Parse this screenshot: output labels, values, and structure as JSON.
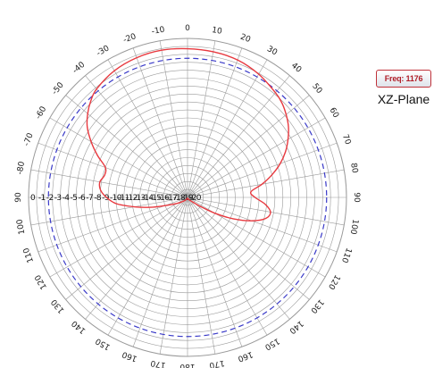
{
  "freq_badge": "Freq: 1176",
  "plane_label": "XZ-Plane",
  "colors": {
    "pattern": "#e8393f",
    "reference": "#3a3ac8",
    "grid": "#9a9a9a",
    "badge_border": "#c0323a"
  },
  "chart_data": {
    "type": "polar",
    "angle_zero": "top",
    "angle_direction": "clockwise",
    "angle_tick_labels": [
      "0",
      "10",
      "20",
      "30",
      "40",
      "50",
      "60",
      "70",
      "80",
      "90",
      "100",
      "110",
      "120",
      "130",
      "140",
      "150",
      "160",
      "170",
      "180",
      "170",
      "160",
      "150",
      "140",
      "130",
      "120",
      "110",
      "100",
      "90",
      "-80",
      "-70",
      "-60",
      "-50",
      "-40",
      "-30",
      "-20",
      "-10"
    ],
    "radial_tick_labels": [
      "0",
      "-1",
      "-2",
      "-3",
      "-4",
      "-5",
      "-6",
      "-7",
      "-8",
      "-9",
      "-10",
      "-11",
      "-12",
      "-13",
      "-14",
      "-15",
      "-16",
      "-17",
      "-18",
      "-19",
      "-20"
    ],
    "radial_range": [
      -20,
      0
    ],
    "reference_level": -2.5,
    "series": [
      {
        "angles_deg": [
          0,
          10,
          20,
          30,
          40,
          45,
          50,
          55,
          60,
          65,
          70,
          75,
          80,
          85,
          90,
          95,
          100,
          105,
          110,
          115,
          120,
          125,
          130,
          140,
          150,
          160,
          170,
          180,
          190,
          200,
          210,
          220,
          230,
          240,
          250,
          255,
          260,
          265,
          270,
          275,
          280,
          285,
          290,
          295,
          300,
          305,
          310,
          315,
          320,
          330,
          340,
          350
        ],
        "values_db": [
          -1.3,
          -1.4,
          -1.6,
          -2.1,
          -2.8,
          -3.2,
          -3.8,
          -4.5,
          -5.4,
          -6.4,
          -7.6,
          -9.0,
          -10.5,
          -12.0,
          -11.5,
          -10.2,
          -9.4,
          -9.8,
          -11.4,
          -13.6,
          -16.0,
          -18.0,
          -19.0,
          -19.5,
          -19.7,
          -19.8,
          -19.8,
          -19.9,
          -19.9,
          -19.8,
          -19.7,
          -19.5,
          -19.2,
          -18.5,
          -17.0,
          -15.2,
          -13.2,
          -11.0,
          -9.8,
          -9.0,
          -8.8,
          -9.2,
          -9.0,
          -7.5,
          -6.0,
          -4.6,
          -3.6,
          -2.8,
          -2.2,
          -1.6,
          -1.3,
          -1.2
        ]
      }
    ]
  }
}
